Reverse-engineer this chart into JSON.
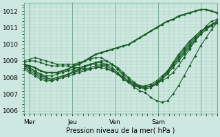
{
  "xlabel": "Pression niveau de la mer( hPa )",
  "ylim": [
    1005.8,
    1012.5
  ],
  "xlim": [
    0,
    108
  ],
  "yticks": [
    1006,
    1007,
    1008,
    1009,
    1010,
    1011,
    1012
  ],
  "xtick_positions": [
    3,
    27,
    51,
    75,
    99
  ],
  "xtick_labels": [
    "Mer",
    "Jeu",
    "Ven",
    "Sam",
    ""
  ],
  "vline_positions": [
    3,
    27,
    51,
    75,
    99
  ],
  "bg_color": "#cce8e0",
  "grid_color": "#aaccbb",
  "line_color": "#1a5c28",
  "series": [
    [
      1008.8,
      1008.7,
      1008.6,
      1008.4,
      1008.3,
      1008.3,
      1008.3,
      1008.4,
      1008.5,
      1008.7,
      1008.8,
      1009.0,
      1009.2,
      1009.4,
      1009.5,
      1009.6,
      1009.7,
      1009.8,
      1009.9,
      1010.0,
      1010.2,
      1010.4,
      1010.6,
      1010.8,
      1011.0,
      1011.2,
      1011.4,
      1011.5,
      1011.7,
      1011.8,
      1011.9,
      1012.0,
      1012.1,
      1012.1,
      1012.0,
      1011.9
    ],
    [
      1008.6,
      1008.4,
      1008.2,
      1008.0,
      1007.9,
      1007.8,
      1007.9,
      1008.0,
      1008.1,
      1008.2,
      1008.3,
      1008.4,
      1008.5,
      1008.6,
      1008.6,
      1008.5,
      1008.4,
      1008.2,
      1008.0,
      1007.8,
      1007.6,
      1007.5,
      1007.4,
      1007.5,
      1007.6,
      1007.8,
      1008.0,
      1008.3,
      1008.7,
      1009.2,
      1009.7,
      1010.2,
      1010.7,
      1011.1,
      1011.4,
      1011.5
    ],
    [
      1008.7,
      1008.5,
      1008.3,
      1008.1,
      1008.0,
      1007.9,
      1008.0,
      1008.1,
      1008.2,
      1008.3,
      1008.4,
      1008.5,
      1008.6,
      1008.7,
      1008.7,
      1008.6,
      1008.4,
      1008.2,
      1007.9,
      1007.7,
      1007.5,
      1007.4,
      1007.4,
      1007.5,
      1007.7,
      1007.9,
      1008.2,
      1008.6,
      1009.0,
      1009.4,
      1009.8,
      1010.2,
      1010.6,
      1010.9,
      1011.2,
      1011.4
    ],
    [
      1008.8,
      1008.6,
      1008.4,
      1008.2,
      1008.0,
      1007.9,
      1008.0,
      1008.1,
      1008.2,
      1008.4,
      1008.5,
      1008.7,
      1008.8,
      1008.9,
      1008.9,
      1008.8,
      1008.6,
      1008.3,
      1008.0,
      1007.8,
      1007.6,
      1007.5,
      1007.5,
      1007.6,
      1007.8,
      1008.1,
      1008.4,
      1008.8,
      1009.2,
      1009.6,
      1010.0,
      1010.4,
      1010.7,
      1011.0,
      1011.2,
      1011.4
    ],
    [
      1008.5,
      1008.3,
      1008.1,
      1007.9,
      1007.8,
      1007.8,
      1007.9,
      1008.0,
      1008.2,
      1008.3,
      1008.5,
      1008.6,
      1008.8,
      1008.9,
      1009.0,
      1009.0,
      1008.8,
      1008.5,
      1008.2,
      1007.9,
      1007.6,
      1007.4,
      1007.3,
      1007.4,
      1007.6,
      1007.9,
      1008.3,
      1008.7,
      1009.1,
      1009.5,
      1009.9,
      1010.3,
      1010.6,
      1010.9,
      1011.1,
      1011.3
    ],
    [
      1008.9,
      1009.0,
      1009.0,
      1008.9,
      1008.8,
      1008.7,
      1008.7,
      1008.7,
      1008.7,
      1008.6,
      1008.6,
      1008.5,
      1008.5,
      1008.6,
      1008.7,
      1008.8,
      1008.8,
      1008.6,
      1008.3,
      1008.0,
      1007.7,
      1007.5,
      1007.4,
      1007.5,
      1007.7,
      1008.0,
      1008.4,
      1008.9,
      1009.4,
      1009.8,
      1010.2,
      1010.5,
      1010.8,
      1011.0,
      1011.2,
      1011.3
    ],
    [
      1008.7,
      1008.6,
      1008.4,
      1008.2,
      1008.1,
      1008.1,
      1008.2,
      1008.3,
      1008.4,
      1008.5,
      1008.6,
      1008.7,
      1008.8,
      1008.8,
      1008.8,
      1008.7,
      1008.5,
      1008.2,
      1007.9,
      1007.7,
      1007.5,
      1007.4,
      1007.3,
      1007.4,
      1007.6,
      1007.9,
      1008.3,
      1008.8,
      1009.3,
      1009.7,
      1010.1,
      1010.5,
      1010.8,
      1011.0,
      1011.2,
      1011.4
    ],
    [
      1009.0,
      1009.1,
      1009.2,
      1009.1,
      1009.0,
      1008.9,
      1008.8,
      1008.8,
      1008.8,
      1008.8,
      1008.9,
      1009.0,
      1009.1,
      1009.2,
      1009.2,
      1009.0,
      1008.8,
      1008.5,
      1008.1,
      1007.7,
      1007.4,
      1007.2,
      1007.1,
      1006.8,
      1006.6,
      1006.5,
      1006.6,
      1007.0,
      1007.5,
      1008.1,
      1008.7,
      1009.3,
      1009.9,
      1010.4,
      1010.9,
      1011.3
    ]
  ],
  "linewidths": [
    1.5,
    0.8,
    0.8,
    0.8,
    0.8,
    0.8,
    0.8,
    0.8
  ],
  "marker": "D",
  "markersize": 1.8
}
